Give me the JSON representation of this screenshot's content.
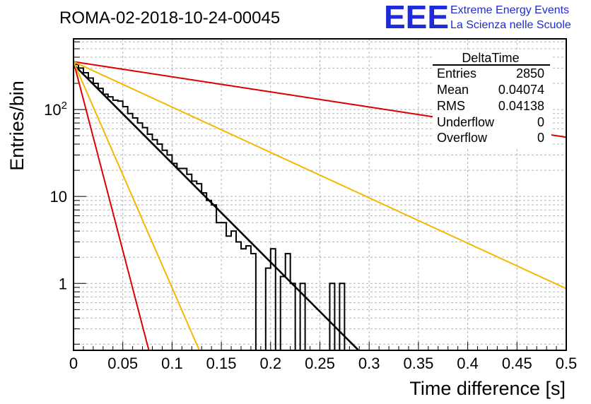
{
  "title": "ROMA-02-2018-10-24-00045",
  "logo": {
    "acronym": "EEE",
    "line1": "Extreme Energy Events",
    "line2": "La Scienza nelle Scuole"
  },
  "stats": {
    "name": "DeltaTime",
    "rows": [
      {
        "label": "Entries",
        "value": "2850"
      },
      {
        "label": "Mean",
        "value": "0.04074"
      },
      {
        "label": "RMS",
        "value": "0.04138"
      },
      {
        "label": "Underflow",
        "value": "0"
      },
      {
        "label": "Overflow",
        "value": "0"
      }
    ]
  },
  "colors": {
    "histogram": "#000000",
    "fit": "#000000",
    "red": "#dd0000",
    "yellow": "#f5b800"
  },
  "chart_data": {
    "type": "histogram",
    "xlabel": "Time difference [s]",
    "ylabel": "Entries/bin",
    "xlim": [
      0,
      0.5
    ],
    "ylim": [
      0.17,
      650
    ],
    "yscale": "log",
    "grid": true,
    "x_ticks": [
      "0",
      "0.05",
      "0.1",
      "0.15",
      "0.2",
      "0.25",
      "0.3",
      "0.35",
      "0.4",
      "0.45",
      "0.5"
    ],
    "y_ticks": [
      {
        "value": 1,
        "label": "1"
      },
      {
        "value": 10,
        "label": "10"
      },
      {
        "value": 100,
        "label": "10^2"
      }
    ],
    "bin_width": 0.005,
    "bin_contents": [
      330,
      300,
      265,
      230,
      200,
      175,
      150,
      140,
      128,
      125,
      108,
      90,
      80,
      70,
      62,
      52,
      45,
      40,
      34,
      30,
      24,
      21,
      21,
      18,
      15,
      14,
      11,
      9,
      8,
      5,
      5,
      3.5,
      4,
      3,
      2.5,
      2.7,
      2.2,
      0,
      0,
      1.5,
      2.5,
      0,
      1.2,
      2.2,
      1,
      0,
      1,
      0,
      0,
      0,
      0,
      0,
      1,
      0,
      1,
      0,
      0,
      0,
      0,
      0,
      0,
      0,
      0,
      0
    ],
    "fits": [
      {
        "color": "black",
        "y0": 330,
        "tau": 0.0382
      },
      {
        "color": "red",
        "y0": 355,
        "tau": 0.25
      },
      {
        "color": "yellow",
        "y0": 355,
        "tau": 0.0832
      },
      {
        "color": "red",
        "y0": 355,
        "tau": 0.01
      },
      {
        "color": "yellow",
        "y0": 355,
        "tau": 0.0167
      }
    ]
  }
}
